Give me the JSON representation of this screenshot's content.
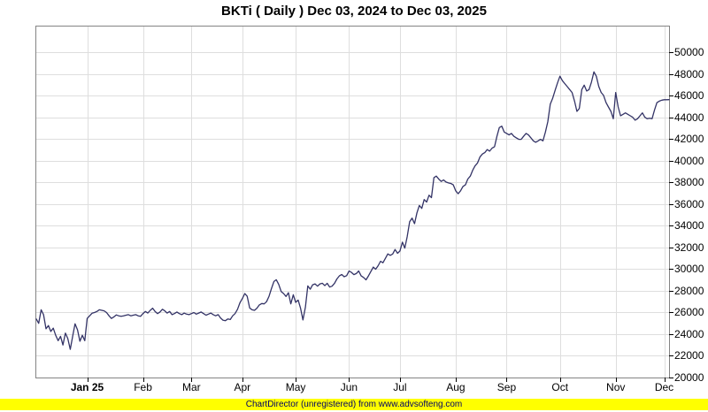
{
  "title": "BKTi ( Daily ) Dec 03, 2024 to Dec 03, 2025",
  "footer": {
    "text": "ChartDirector (unregistered) from www.advsofteng.com",
    "bg_color": "#ffff00",
    "text_color": "#000066"
  },
  "chart_data": {
    "type": "line",
    "title": "BKTi ( Daily ) Dec 03, 2024 to Dec 03, 2025",
    "series_name": "BKTi",
    "line_color": "#333366",
    "grid_color": "#dedede",
    "border_color": "#848484",
    "tick_color": "#000000",
    "grid_on": true,
    "legend_position": "none",
    "xlabel": "",
    "ylabel": "",
    "x_total_days": 261,
    "x_ticks": [
      {
        "day": 21,
        "label": "Jan 25",
        "bold": true
      },
      {
        "day": 44,
        "label": "Feb",
        "bold": false
      },
      {
        "day": 64,
        "label": "Mar",
        "bold": false
      },
      {
        "day": 85,
        "label": "Apr",
        "bold": false
      },
      {
        "day": 107,
        "label": "May",
        "bold": false
      },
      {
        "day": 129,
        "label": "Jun",
        "bold": false
      },
      {
        "day": 150,
        "label": "Jul",
        "bold": false
      },
      {
        "day": 173,
        "label": "Aug",
        "bold": false
      },
      {
        "day": 194,
        "label": "Sep",
        "bold": false
      },
      {
        "day": 216,
        "label": "Oct",
        "bold": false
      },
      {
        "day": 239,
        "label": "Nov",
        "bold": false
      },
      {
        "day": 259,
        "label": "Dec",
        "bold": false
      }
    ],
    "y_ticks": [
      20000,
      22000,
      24000,
      26000,
      28000,
      30000,
      32000,
      34000,
      36000,
      38000,
      40000,
      42000,
      44000,
      46000,
      48000,
      50000
    ],
    "ylim": [
      20000,
      52400
    ],
    "values": [
      25400,
      25000,
      26250,
      25800,
      24500,
      24800,
      24250,
      24550,
      23900,
      23400,
      23800,
      23000,
      24100,
      23600,
      22600,
      23800,
      24950,
      24400,
      23350,
      23900,
      23400,
      25450,
      25700,
      25935,
      26000,
      26100,
      26250,
      26200,
      26150,
      26000,
      25700,
      25450,
      25600,
      25775,
      25700,
      25650,
      25700,
      25750,
      25800,
      25700,
      25750,
      25800,
      25700,
      25650,
      25900,
      26100,
      25950,
      26200,
      26400,
      26100,
      25900,
      26050,
      26300,
      26150,
      25950,
      26100,
      25800,
      25900,
      26050,
      25900,
      25800,
      25950,
      25850,
      25800,
      25900,
      26000,
      25850,
      25950,
      26050,
      25900,
      25750,
      25850,
      25950,
      25800,
      25700,
      25800,
      25500,
      25300,
      25250,
      25400,
      25350,
      25700,
      25900,
      26300,
      26900,
      27300,
      27750,
      27500,
      26420,
      26250,
      26200,
      26400,
      26700,
      26830,
      26800,
      27000,
      27500,
      28200,
      28860,
      29025,
      28600,
      27940,
      27750,
      27480,
      27830,
      26800,
      27640,
      26935,
      27150,
      26400,
      25310,
      26500,
      28455,
      28155,
      28560,
      28640,
      28430,
      28640,
      28700,
      28480,
      28700,
      28350,
      28430,
      28700,
      29100,
      29375,
      29510,
      29300,
      29400,
      29835,
      29700,
      29500,
      29600,
      29835,
      29375,
      29240,
      29020,
      29375,
      29780,
      30190,
      30000,
      30325,
      30730,
      30595,
      31000,
      31410,
      31275,
      31400,
      31815,
      31465,
      31680,
      32495,
      31950,
      33000,
      34390,
      34715,
      34200,
      35200,
      35880,
      35610,
      36425,
      36200,
      36830,
      36610,
      38455,
      38590,
      38315,
      38100,
      38240,
      38045,
      37965,
      37910,
      37780,
      37235,
      36965,
      37235,
      37640,
      37780,
      38320,
      38590,
      39130,
      39535,
      39810,
      40350,
      40630,
      40760,
      41040,
      40900,
      41170,
      41310,
      42260,
      43075,
      43205,
      42665,
      42530,
      42395,
      42530,
      42260,
      42125,
      41985,
      41985,
      42260,
      42530,
      42395,
      42125,
      41850,
      41715,
      41850,
      41985,
      41850,
      42665,
      43615,
      45240,
      45780,
      46500,
      47200,
      47810,
      47400,
      47130,
      46855,
      46585,
      46315,
      45510,
      44565,
      44835,
      46585,
      46990,
      46450,
      46585,
      47265,
      48215,
      47810,
      46855,
      46315,
      46045,
      45375,
      44970,
      44565,
      43890,
      46315,
      44970,
      44160,
      44295,
      44430,
      44295,
      44160,
      44025,
      43755,
      43890,
      44160,
      44430,
      44025,
      43890,
      43940,
      43890,
      44700,
      45375,
      45510,
      45600,
      45645,
      45645,
      45650
    ]
  }
}
